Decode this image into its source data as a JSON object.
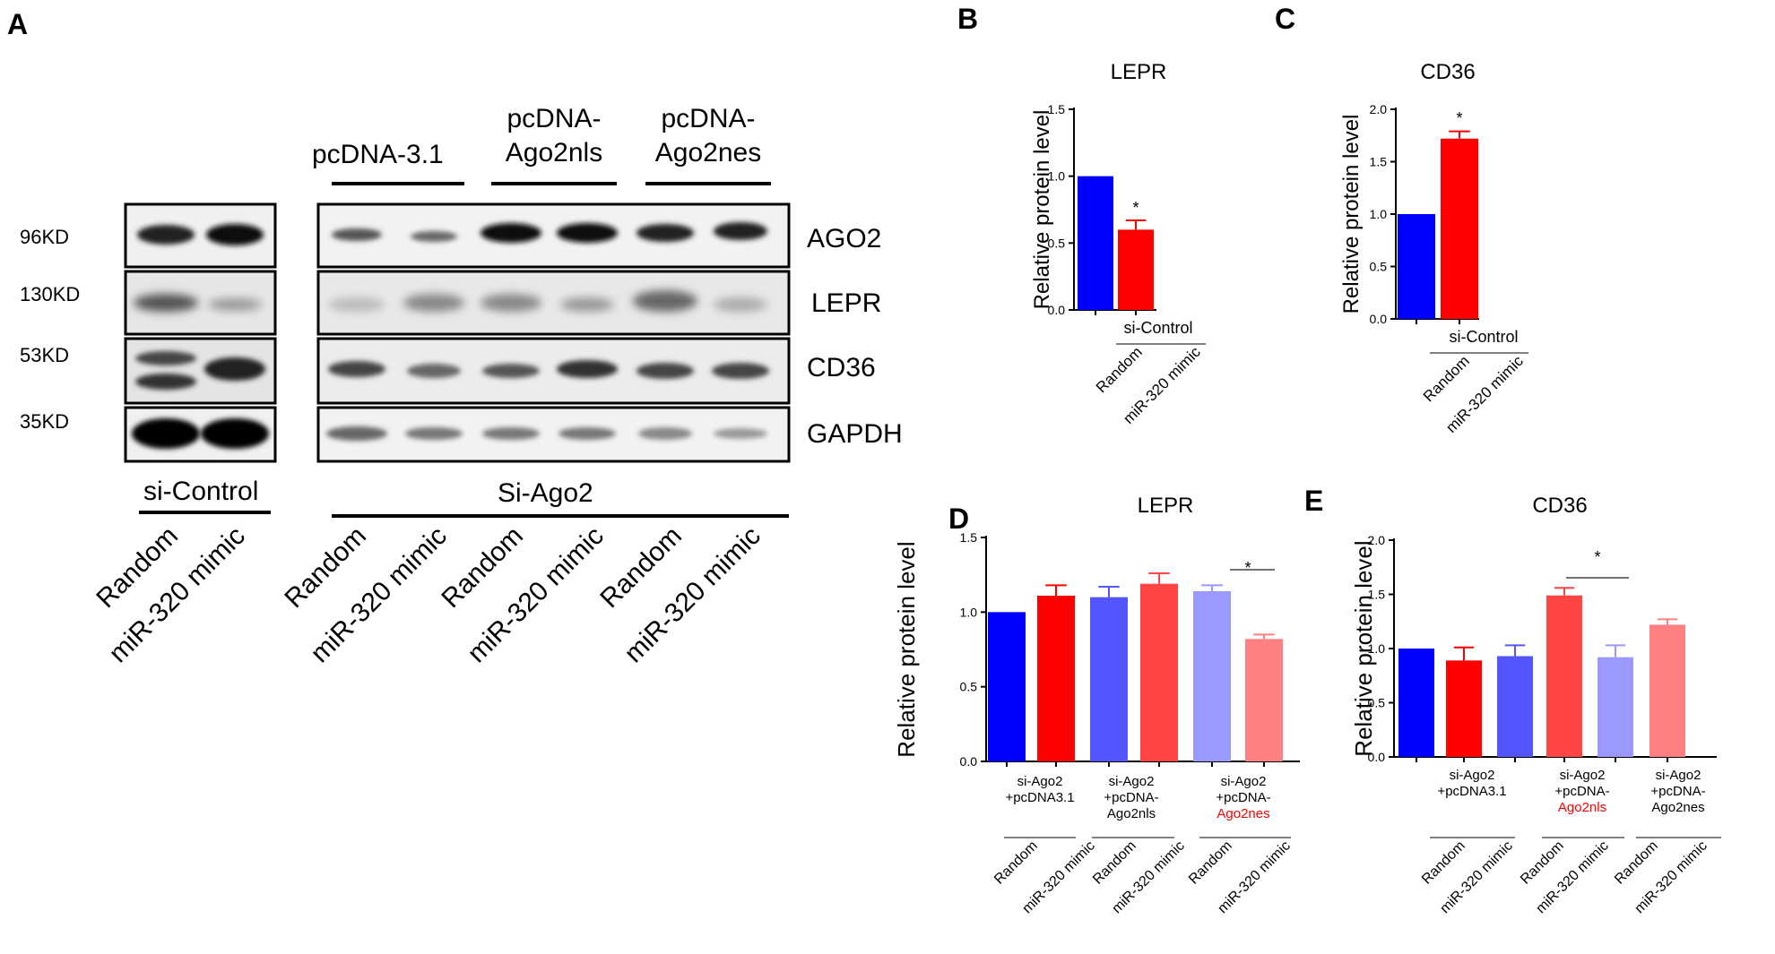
{
  "panel_letters": {
    "a": "A",
    "b": "B",
    "c": "C",
    "d": "D",
    "e": "E"
  },
  "blot": {
    "header_groups": [
      "pcDNA-3.1",
      "pcDNA-\nAgo2nls",
      "pcDNA-\nAgo2nes"
    ],
    "mw_labels": [
      "96KD",
      "130KD",
      "53KD",
      "35KD"
    ],
    "proteins": [
      "AGO2",
      "LEPR",
      "CD36",
      "GAPDH"
    ],
    "bottom_labels": {
      "left": "si-Control",
      "right": "Si-Ago2"
    },
    "lanes": [
      "Random",
      "miR-320 mimic",
      "Random",
      "miR-320 mimic",
      "Random",
      "miR-320 mimic",
      "Random",
      "miR-320 mimic"
    ]
  },
  "chart_data": [
    {
      "panel": "B",
      "type": "bar",
      "title": "LEPR",
      "ylabel": "Relative protein level",
      "ylim": [
        0,
        1.5
      ],
      "yticks": [
        "0.0",
        "0.5",
        "1.0",
        "1.5"
      ],
      "categories": [
        "Random",
        "miR-320 mimic"
      ],
      "values": [
        1.0,
        0.6
      ],
      "errors": [
        0,
        0.07
      ],
      "colors": [
        "#0000ff",
        "#ff0000"
      ],
      "group_labels": [
        "si-Control"
      ],
      "significance": [
        "*"
      ]
    },
    {
      "panel": "C",
      "type": "bar",
      "title": "CD36",
      "ylabel": "Relative protein level",
      "ylim": [
        0,
        2.0
      ],
      "yticks": [
        "0.0",
        "0.5",
        "1.0",
        "1.5",
        "2.0"
      ],
      "categories": [
        "Random",
        "miR-320 mimic"
      ],
      "values": [
        1.0,
        1.72
      ],
      "errors": [
        0,
        0.07
      ],
      "colors": [
        "#0000ff",
        "#ff0000"
      ],
      "group_labels": [
        "si-Control"
      ],
      "significance": [
        "*"
      ]
    },
    {
      "panel": "D",
      "type": "bar",
      "title": "LEPR",
      "ylabel": "Relative protein level",
      "ylim": [
        0,
        1.5
      ],
      "yticks": [
        "0.0",
        "0.5",
        "1.0",
        "1.5"
      ],
      "categories": [
        "Random",
        "miR-320 mimic",
        "Random",
        "miR-320 mimic",
        "Random",
        "miR-320 mimic"
      ],
      "values": [
        1.0,
        1.11,
        1.1,
        1.19,
        1.14,
        0.82
      ],
      "errors": [
        0,
        0.07,
        0.07,
        0.07,
        0.04,
        0.03
      ],
      "colors": [
        "#0000ff",
        "#ff0000",
        "#5555ff",
        "#ff4444",
        "#9999ff",
        "#ff8080"
      ],
      "group_labels": [
        "si-Ago2\n+pcDNA3.1",
        "si-Ago2\n+pcDNA-\nAgo2nls",
        "si-Ago2\n+pcDNA-\nAgo2nes"
      ],
      "highlight_group": 2,
      "significance": [
        "*"
      ]
    },
    {
      "panel": "E",
      "type": "bar",
      "title": "CD36",
      "ylabel": "Relative protein level",
      "ylim": [
        0,
        2.0
      ],
      "yticks": [
        "0.0",
        "0.5",
        "1.0",
        "1.5",
        "2.0"
      ],
      "categories": [
        "Random",
        "miR-320 mimic",
        "Random",
        "miR-320 mimic",
        "Random",
        "miR-320 mimic"
      ],
      "values": [
        1.0,
        0.89,
        0.93,
        1.49,
        0.92,
        1.22
      ],
      "errors": [
        0,
        0.12,
        0.1,
        0.07,
        0.11,
        0.05
      ],
      "colors": [
        "#0000ff",
        "#ff0000",
        "#5555ff",
        "#ff4444",
        "#9999ff",
        "#ff8080"
      ],
      "group_labels": [
        "si-Ago2\n+pcDNA3.1",
        "si-Ago2\n+pcDNA-\nAgo2nls",
        "si-Ago2\n+pcDNA-\nAgo2nes"
      ],
      "highlight_group": 1,
      "significance": [
        "*"
      ]
    }
  ]
}
